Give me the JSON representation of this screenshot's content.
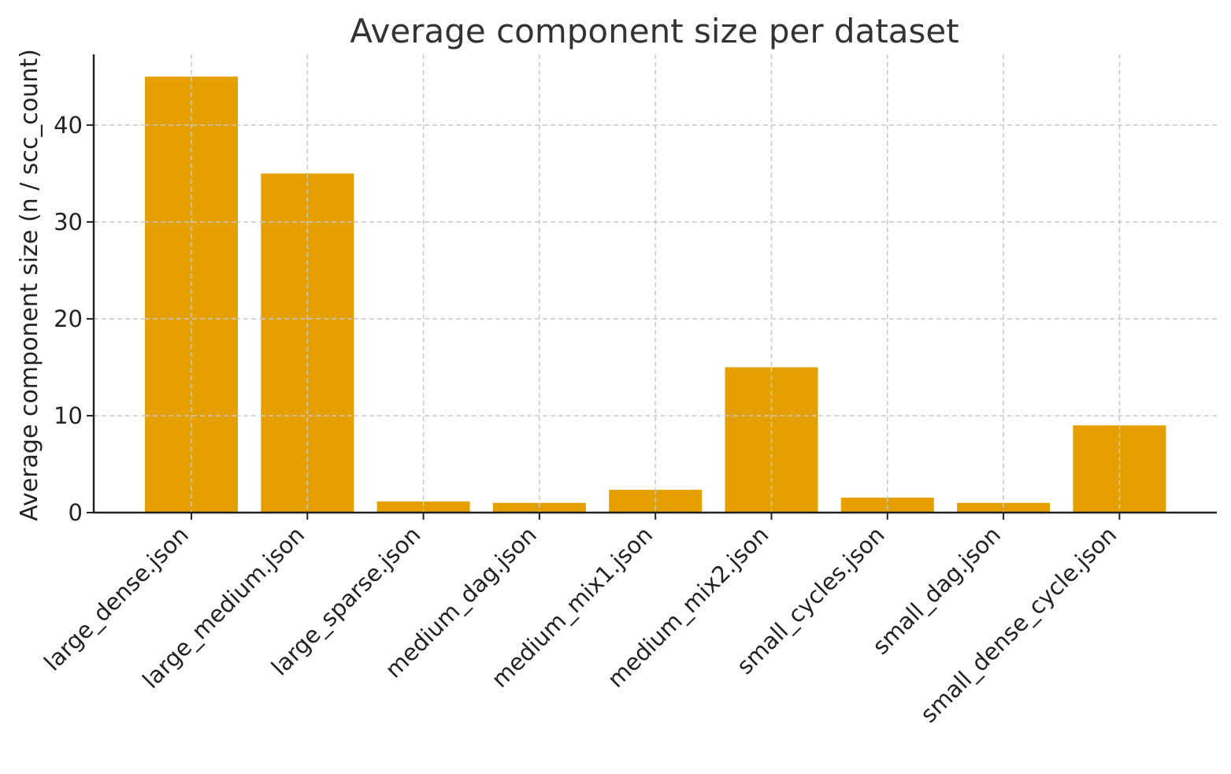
{
  "chart_data": {
    "type": "bar",
    "title": "Average component size per dataset",
    "xlabel": "",
    "ylabel": "Average component size (n / scc_count)",
    "categories": [
      "large_dense.json",
      "large_medium.json",
      "large_sparse.json",
      "medium_dag.json",
      "medium_mix1.json",
      "medium_mix2.json",
      "small_cycles.json",
      "small_dag.json",
      "small_dense_cycle.json"
    ],
    "values": [
      45.0,
      35.0,
      1.15,
      1.0,
      2.35,
      15.0,
      1.55,
      1.0,
      9.0
    ],
    "ylim": [
      0,
      47.3
    ],
    "yticks": [
      0,
      10,
      20,
      30,
      40
    ],
    "grid": true,
    "bar_color": "#e5a000"
  }
}
